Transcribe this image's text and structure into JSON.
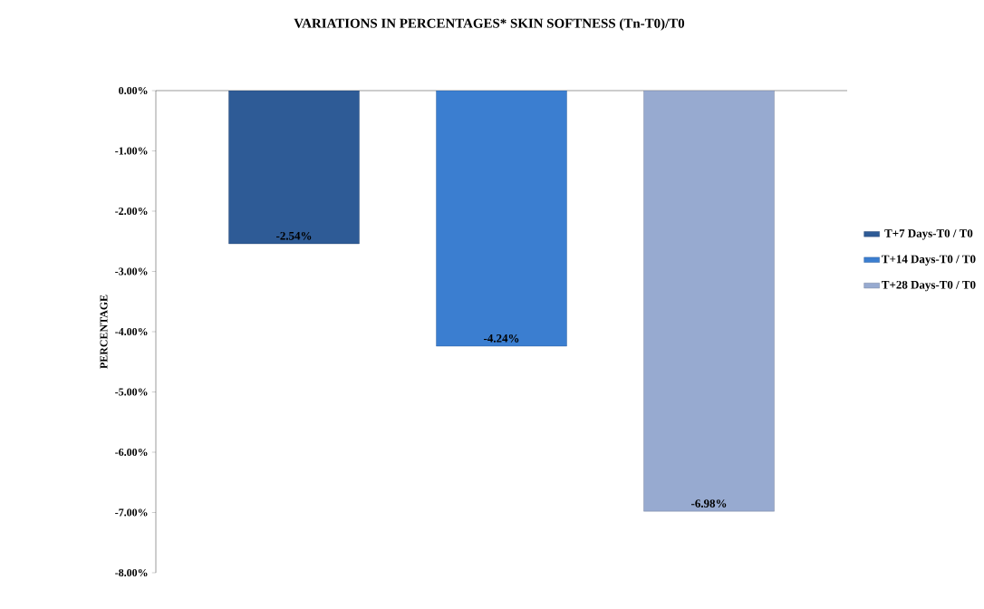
{
  "chart_data": {
    "type": "bar",
    "title": "VARIATIONS IN PERCENTAGES* SKIN SOFTNESS  (Tn-T0)/T0",
    "ylabel": "PERCENTAGE",
    "categories": [
      null
    ],
    "series": [
      {
        "name": "T+7 Days-T0 / T0",
        "color": "#2e5b96",
        "values": [
          -2.54
        ],
        "value_labels": [
          "-2.54%"
        ]
      },
      {
        "name": "T+14 Days-T0 / T0",
        "color": "#3b7ed0",
        "values": [
          -4.24
        ],
        "value_labels": [
          "-4.24%"
        ]
      },
      {
        "name": "T+28 Days-T0 / T0",
        "color": "#97aad0",
        "values": [
          -6.98
        ],
        "value_labels": [
          "-6.98%"
        ]
      }
    ],
    "ylim": [
      -8,
      0
    ],
    "yticks": [
      {
        "value": 0,
        "label": "0.00%"
      },
      {
        "value": -1,
        "label": "-1.00%"
      },
      {
        "value": -2,
        "label": "-2.00%"
      },
      {
        "value": -3,
        "label": "-3.00%"
      },
      {
        "value": -4,
        "label": "-4.00%"
      },
      {
        "value": -5,
        "label": "-5.00%"
      },
      {
        "value": -6,
        "label": "-6.00%"
      },
      {
        "value": -7,
        "label": "-7.00%"
      },
      {
        "value": -8,
        "label": "-8.00%"
      }
    ],
    "legend": "right",
    "grid": false
  }
}
